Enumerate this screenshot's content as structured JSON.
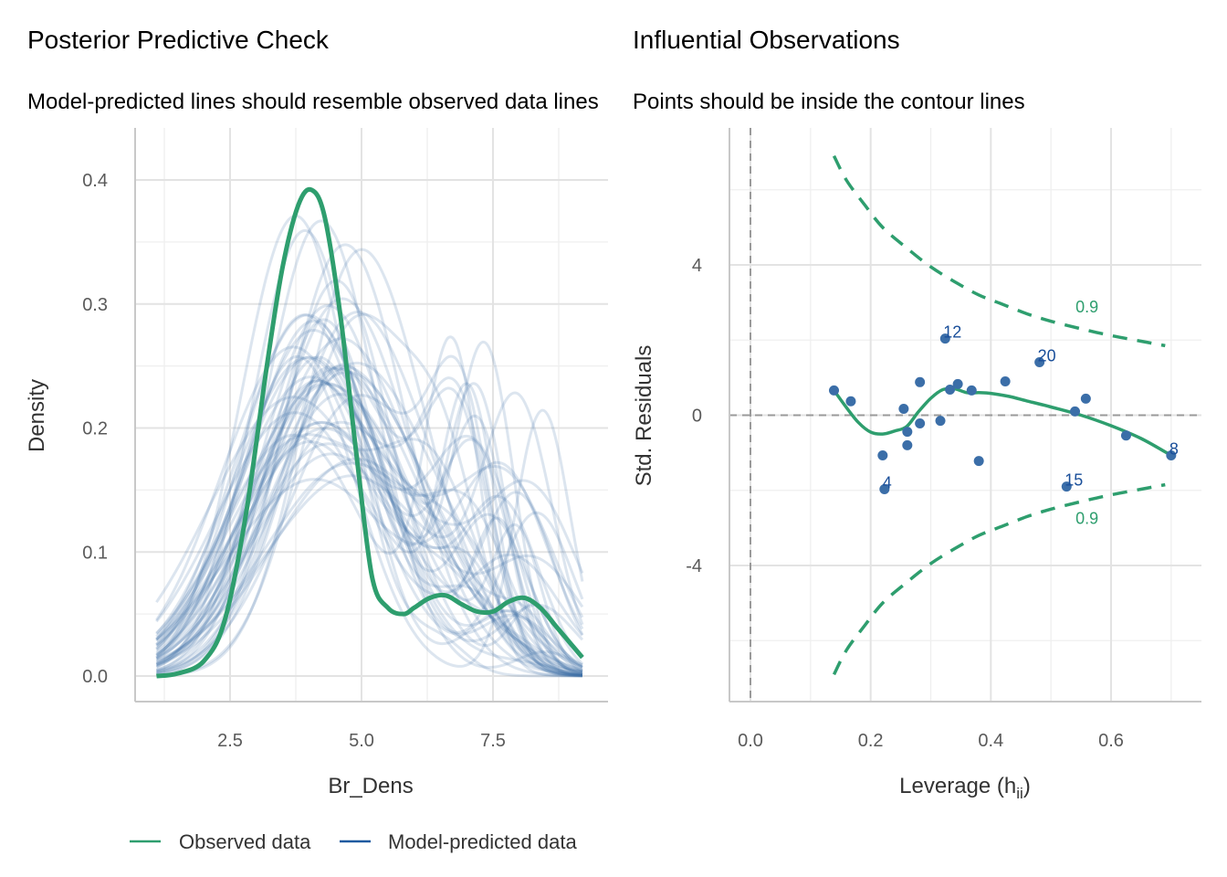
{
  "colors": {
    "observed": "#2e9e6e",
    "predicted": "#3b6ea8",
    "point": "#3b6ea8",
    "point_label": "#1a4f9a",
    "grid": "#e3e3e3",
    "ref_line": "#9a9a9a",
    "contour": "#2e9e6e"
  },
  "chart_data": [
    {
      "type": "line",
      "id": "ppc",
      "title": "Posterior Predictive Check",
      "subtitle": "Model-predicted lines should resemble observed data lines",
      "xlabel": "Br_Dens",
      "ylabel": "Density",
      "xlim": [
        0.75,
        9.7
      ],
      "ylim": [
        -0.02,
        0.44
      ],
      "xticks": [
        2.5,
        5.0,
        7.5
      ],
      "xtick_labels": [
        "2.5",
        "5.0",
        "7.5"
      ],
      "yticks": [
        0.0,
        0.1,
        0.2,
        0.3,
        0.4
      ],
      "ytick_labels": [
        "0.0",
        "0.1",
        "0.2",
        "0.3",
        "0.4"
      ],
      "grid": true,
      "legend": {
        "position": "bottom",
        "entries": [
          {
            "label": "Observed data",
            "series": "observed"
          },
          {
            "label": "Model-predicted data",
            "series": "predicted"
          }
        ]
      },
      "observed": {
        "name": "Observed data",
        "x": [
          1.1,
          1.5,
          2.0,
          2.4,
          2.8,
          3.2,
          3.5,
          3.8,
          4.05,
          4.3,
          4.6,
          4.9,
          5.2,
          5.5,
          5.8,
          6.0,
          6.3,
          6.6,
          6.9,
          7.2,
          7.5,
          7.8,
          8.1,
          8.4,
          8.7,
          9.0,
          9.2
        ],
        "y": [
          0.0,
          0.002,
          0.012,
          0.045,
          0.13,
          0.25,
          0.33,
          0.38,
          0.392,
          0.37,
          0.29,
          0.18,
          0.08,
          0.055,
          0.05,
          0.055,
          0.063,
          0.065,
          0.058,
          0.052,
          0.052,
          0.06,
          0.063,
          0.055,
          0.04,
          0.025,
          0.015
        ]
      },
      "predicted": {
        "name": "Model-predicted data",
        "n_draws": 50,
        "x_range": [
          1.1,
          9.2
        ],
        "peak_y_range": [
          0.17,
          0.42
        ],
        "peak_x_range": [
          3.6,
          5.1
        ],
        "note": "draws approximated as smooth density curves"
      }
    },
    {
      "type": "scatter",
      "id": "influence",
      "title": "Influential Observations",
      "subtitle": "Points should be inside the contour lines",
      "xlabel": "Leverage (h",
      "xlabel_sub": "ii",
      "xlabel_end": ")",
      "ylabel": "Std. Residuals",
      "xlim": [
        -0.035,
        0.75
      ],
      "ylim": [
        -7.6,
        7.7
      ],
      "xticks": [
        0.0,
        0.2,
        0.4,
        0.6
      ],
      "xtick_labels": [
        "0.0",
        "0.2",
        "0.4",
        "0.6"
      ],
      "yticks": [
        -4,
        0,
        4
      ],
      "ytick_labels": [
        "-4",
        "0",
        "4"
      ],
      "grid": true,
      "points": [
        {
          "x": 0.139,
          "y": 0.66
        },
        {
          "x": 0.167,
          "y": 0.37
        },
        {
          "x": 0.22,
          "y": -1.07
        },
        {
          "x": 0.223,
          "y": -1.97,
          "label": "4"
        },
        {
          "x": 0.255,
          "y": 0.17
        },
        {
          "x": 0.261,
          "y": -0.44
        },
        {
          "x": 0.261,
          "y": -0.8
        },
        {
          "x": 0.282,
          "y": 0.88
        },
        {
          "x": 0.282,
          "y": -0.22
        },
        {
          "x": 0.316,
          "y": -0.15
        },
        {
          "x": 0.324,
          "y": 2.04,
          "label": "12"
        },
        {
          "x": 0.332,
          "y": 0.68
        },
        {
          "x": 0.345,
          "y": 0.83
        },
        {
          "x": 0.368,
          "y": 0.66
        },
        {
          "x": 0.38,
          "y": -1.22
        },
        {
          "x": 0.424,
          "y": 0.9
        },
        {
          "x": 0.481,
          "y": 1.41,
          "label": "20"
        },
        {
          "x": 0.526,
          "y": -1.9,
          "label": "15"
        },
        {
          "x": 0.54,
          "y": 0.1
        },
        {
          "x": 0.558,
          "y": 0.44
        },
        {
          "x": 0.625,
          "y": -0.54
        },
        {
          "x": 0.7,
          "y": -1.07,
          "label": "8"
        }
      ],
      "smooth": {
        "x": [
          0.139,
          0.16,
          0.18,
          0.2,
          0.22,
          0.24,
          0.26,
          0.28,
          0.3,
          0.32,
          0.34,
          0.36,
          0.38,
          0.4,
          0.43,
          0.46,
          0.5,
          0.55,
          0.6,
          0.65,
          0.7
        ],
        "y": [
          0.66,
          0.2,
          -0.2,
          -0.45,
          -0.5,
          -0.42,
          -0.3,
          0.1,
          0.45,
          0.68,
          0.7,
          0.6,
          0.6,
          0.58,
          0.5,
          0.38,
          0.22,
          0.0,
          -0.28,
          -0.62,
          -1.07
        ]
      },
      "contour": {
        "label": "0.9",
        "upper": {
          "x": [
            0.139,
            0.16,
            0.19,
            0.22,
            0.26,
            0.3,
            0.34,
            0.38,
            0.42,
            0.46,
            0.5,
            0.55,
            0.6,
            0.65,
            0.69
          ],
          "y": [
            6.9,
            6.25,
            5.6,
            5.0,
            4.45,
            3.95,
            3.55,
            3.2,
            2.95,
            2.7,
            2.5,
            2.3,
            2.12,
            1.97,
            1.85
          ]
        },
        "lower": {
          "x": [
            0.139,
            0.16,
            0.19,
            0.22,
            0.26,
            0.3,
            0.34,
            0.38,
            0.42,
            0.46,
            0.5,
            0.55,
            0.6,
            0.65,
            0.69
          ],
          "y": [
            -6.9,
            -6.25,
            -5.6,
            -5.0,
            -4.45,
            -3.95,
            -3.55,
            -3.2,
            -2.95,
            -2.7,
            -2.5,
            -2.3,
            -2.12,
            -1.97,
            -1.85
          ]
        },
        "upper_label_at": {
          "x": 0.56,
          "y": 2.88
        },
        "lower_label_at": {
          "x": 0.56,
          "y": -2.75
        }
      },
      "ref_lines": {
        "h": 0,
        "v": 0
      }
    }
  ]
}
